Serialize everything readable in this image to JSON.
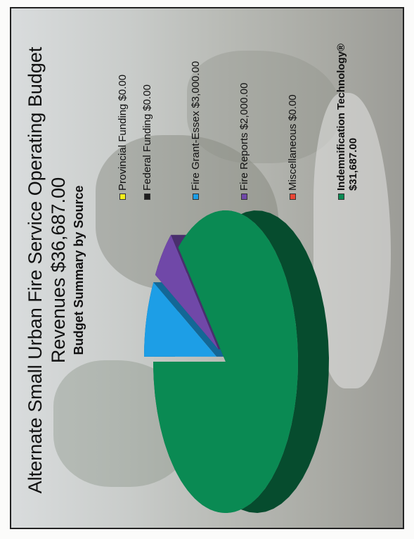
{
  "chart_data": {
    "type": "pie",
    "title": "Alternate Small Urban Fire Service Operating Budget Revenues $36,687.00",
    "subtitle": "Budget Summary by Source",
    "legend_position": "right",
    "three_d": true,
    "slices": [
      {
        "label": "Provincial Funding $0.00",
        "value": 0,
        "color": "#f2ee1d"
      },
      {
        "label": "Federal Funding $0.00",
        "value": 0,
        "color": "#1e1e1e"
      },
      {
        "label": "Fire Grant-Essex $3,000.00",
        "value": 3000,
        "color": "#1d9ee6"
      },
      {
        "label": "Fire Reports $2,000.00",
        "value": 2000,
        "color": "#7048a8"
      },
      {
        "label": "Miscellaneous $0.00",
        "value": 0,
        "color": "#e94535"
      },
      {
        "label": "Indemnification Technology® $31,687.00",
        "value": 31687,
        "color": "#0a8a53"
      }
    ]
  }
}
